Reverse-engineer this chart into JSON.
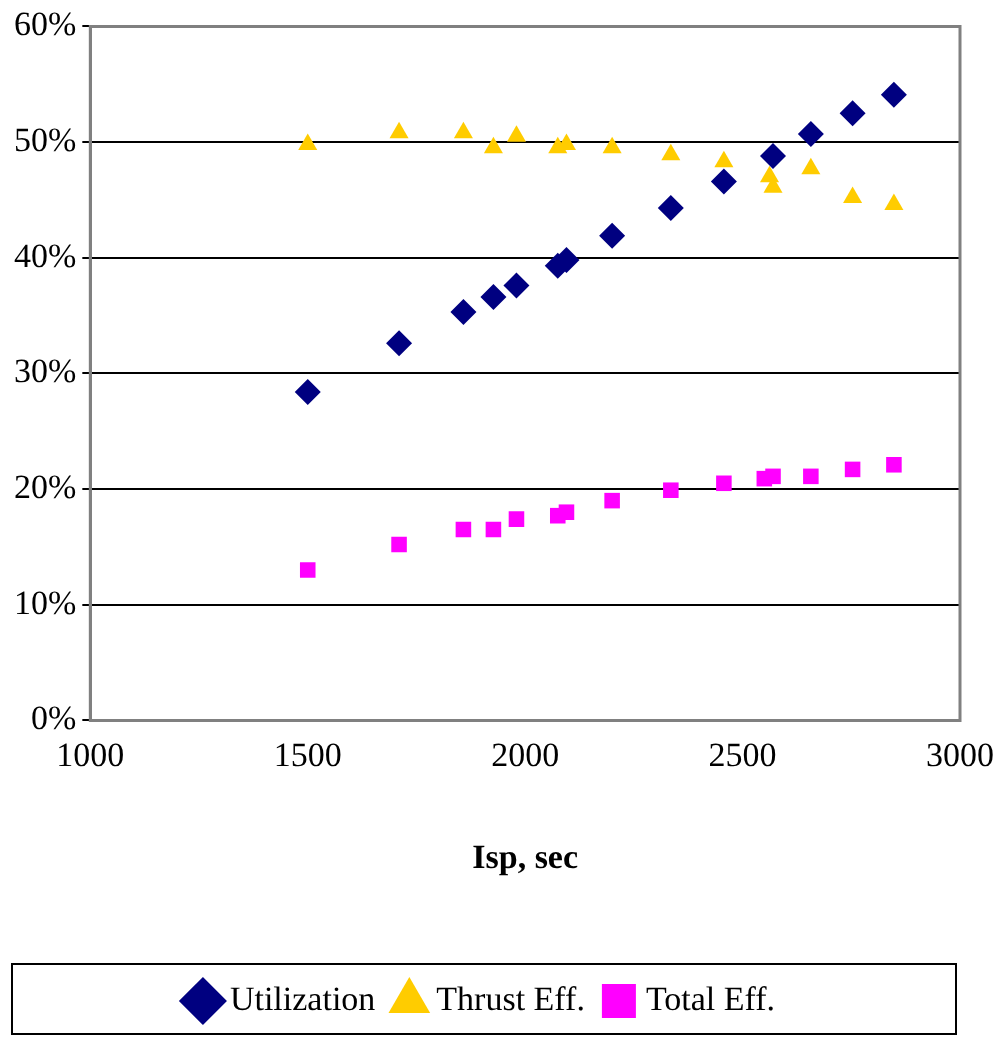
{
  "chart_data": {
    "type": "scatter",
    "xlabel": "Isp, sec",
    "x": [
      1500,
      1710,
      1858,
      1927,
      1980,
      2075,
      2095,
      2200,
      2335,
      2457,
      2562,
      2570,
      2657,
      2753,
      2848
    ],
    "series": [
      {
        "name": "Utilization",
        "color": "#000080",
        "marker": "diamond",
        "values": [
          28.4,
          32.6,
          35.3,
          36.6,
          37.6,
          39.3,
          39.8,
          41.9,
          44.3,
          46.6,
          null,
          48.8,
          50.7,
          52.5,
          54.1
        ]
      },
      {
        "name": "Thrust Eff.",
        "color": "#ffcc00",
        "marker": "triangle",
        "values": [
          49.8,
          50.8,
          50.8,
          49.5,
          50.5,
          49.5,
          49.8,
          49.5,
          48.9,
          48.3,
          47.0,
          46.1,
          47.7,
          45.2,
          44.6
        ]
      },
      {
        "name": "Total Eff.",
        "color": "#ff00ff",
        "marker": "square",
        "x": [
          1500,
          1710,
          1858,
          1927,
          1980,
          2075,
          2095,
          2200,
          2335,
          2457,
          2550,
          2570,
          2657,
          2753,
          2848
        ],
        "values": [
          13.0,
          15.2,
          16.5,
          16.5,
          17.4,
          17.7,
          18.0,
          19.0,
          19.9,
          20.5,
          20.9,
          21.1,
          21.1,
          21.7,
          22.1
        ]
      }
    ],
    "xlim": [
      1000,
      3000
    ],
    "xticks": [
      1000,
      1500,
      2000,
      2500,
      3000
    ],
    "ylim": [
      0,
      60
    ],
    "yticks": [
      {
        "value": 0,
        "label": "0%"
      },
      {
        "value": 10,
        "label": "10%"
      },
      {
        "value": 20,
        "label": "20%"
      },
      {
        "value": 30,
        "label": "30%"
      },
      {
        "value": 40,
        "label": "40%"
      },
      {
        "value": 50,
        "label": "50%"
      },
      {
        "value": 60,
        "label": "60%"
      }
    ],
    "grid": "y",
    "legend": "bottom"
  }
}
